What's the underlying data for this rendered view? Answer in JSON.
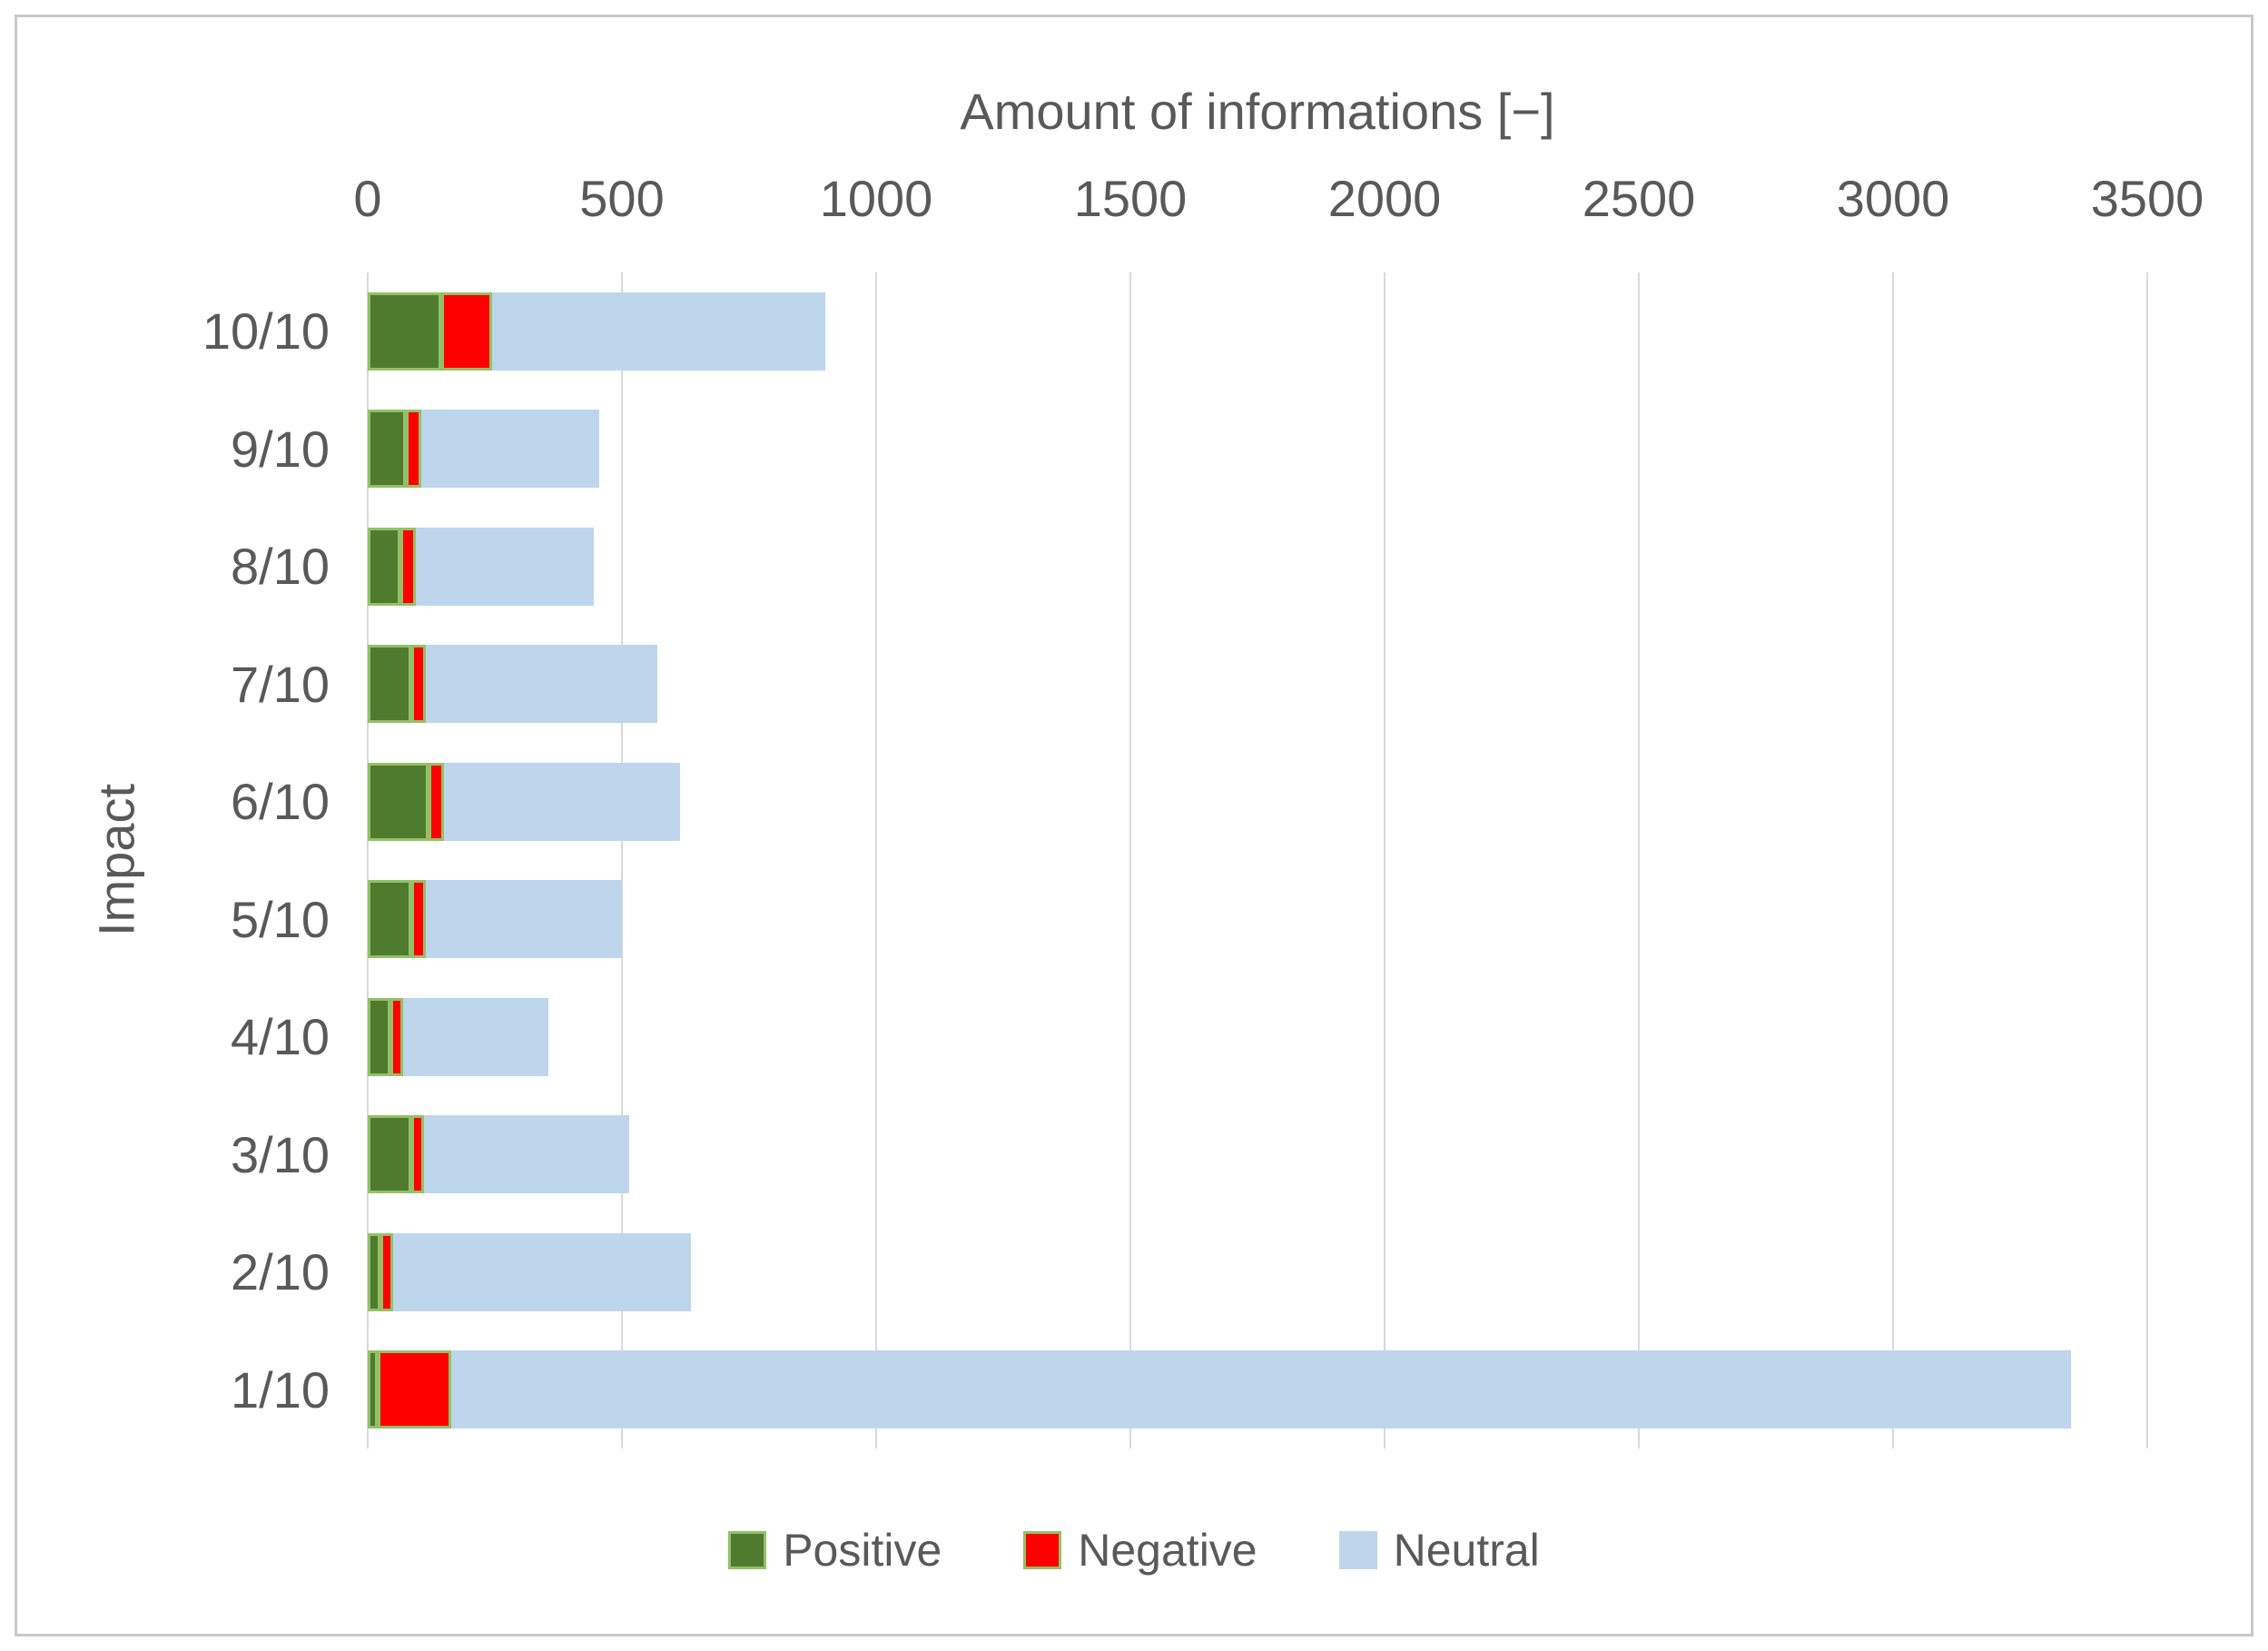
{
  "chart_data": {
    "type": "bar",
    "orientation": "horizontal",
    "stacked": true,
    "title": "Amount of informations [−]",
    "xlabel": "Amount of informations [−]",
    "ylabel": "Impact",
    "xlim": [
      0,
      3500
    ],
    "x_ticks": [
      0,
      500,
      1000,
      1500,
      2000,
      2500,
      3000,
      3500
    ],
    "grid": true,
    "legend_position": "bottom-center",
    "categories": [
      "10/10",
      "9/10",
      "8/10",
      "7/10",
      "6/10",
      "5/10",
      "4/10",
      "3/10",
      "2/10",
      "1/10"
    ],
    "series": [
      {
        "name": "Positive",
        "color": "#4f7b2f",
        "border_color": "#94c168",
        "values": [
          145,
          75,
          65,
          85,
          120,
          85,
          45,
          85,
          25,
          20
        ]
      },
      {
        "name": "Negative",
        "color": "#fe0000",
        "border_color": "#94c168",
        "values": [
          100,
          30,
          30,
          30,
          30,
          30,
          25,
          25,
          25,
          145
        ]
      },
      {
        "name": "Neutral",
        "color": "#bdd6ec",
        "border_color": null,
        "values": [
          655,
          350,
          350,
          455,
          465,
          385,
          285,
          405,
          585,
          3185
        ]
      }
    ],
    "colors": {
      "text": "#595959",
      "gridline": "#d9d9d9",
      "frame": "#c9c9c9",
      "background": "#ffffff"
    }
  }
}
